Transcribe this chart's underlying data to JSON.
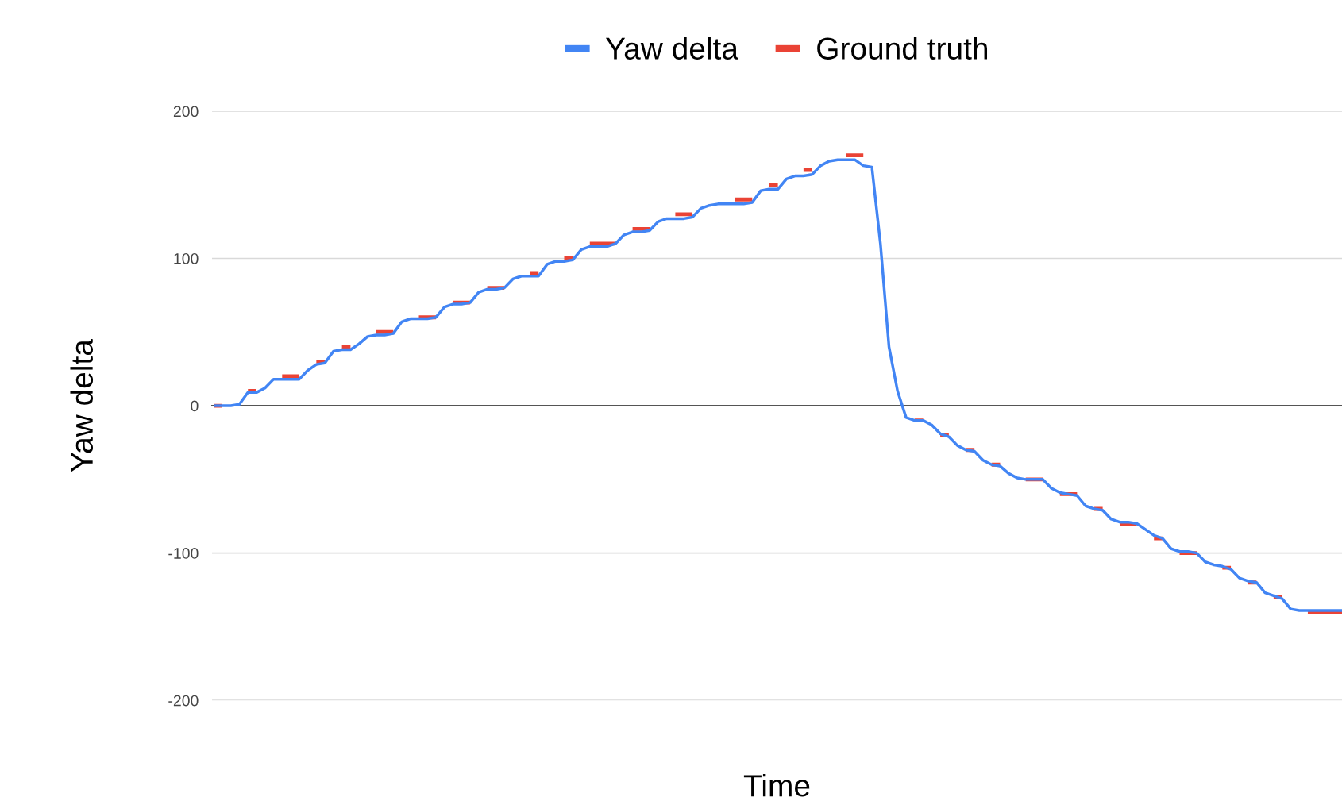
{
  "chart_data": {
    "type": "line",
    "xlabel": "Time",
    "ylabel": "Yaw delta",
    "categories": [
      null,
      null,
      null,
      null,
      null,
      null,
      null,
      null,
      null,
      null,
      null,
      null,
      null,
      null,
      null,
      null,
      null,
      null,
      null,
      null,
      null,
      null,
      null,
      null,
      null,
      null,
      null,
      null,
      null,
      null,
      null,
      null,
      null,
      null,
      null,
      null,
      null,
      null,
      null,
      null,
      null,
      null,
      null,
      null,
      null,
      null,
      null,
      null,
      null,
      null,
      null,
      null,
      null,
      null,
      null,
      null,
      null,
      null,
      null,
      null,
      null,
      null,
      null,
      null,
      null,
      null,
      null,
      null,
      null,
      null,
      null,
      null,
      null,
      null,
      null,
      null,
      null,
      null,
      null,
      null,
      null,
      null,
      null,
      null,
      null,
      null,
      null,
      null,
      null,
      null,
      null,
      null,
      null,
      null,
      null,
      null,
      null,
      null,
      null,
      null,
      null,
      null,
      null,
      null,
      null,
      null,
      null,
      null,
      null,
      null,
      null,
      null,
      null,
      null,
      null,
      null,
      null,
      null,
      null,
      null,
      null,
      null,
      null,
      null,
      null,
      null,
      null,
      null,
      null,
      null,
      null,
      null,
      null
    ],
    "series": [
      {
        "name": "Yaw delta",
        "color": "#4285f4",
        "values": [
          0,
          0,
          0,
          1,
          9,
          9,
          12,
          18,
          18,
          18,
          18,
          24,
          28,
          29,
          37,
          38,
          38,
          42,
          47,
          48,
          48,
          49,
          57,
          59,
          59,
          59,
          60,
          67,
          69,
          69,
          70,
          77,
          79,
          79,
          80,
          86,
          88,
          88,
          88,
          96,
          98,
          98,
          99,
          106,
          108,
          108,
          108,
          110,
          116,
          118,
          118,
          119,
          125,
          127,
          127,
          127,
          128,
          134,
          136,
          137,
          137,
          137,
          137,
          138,
          146,
          147,
          147,
          154,
          156,
          156,
          157,
          163,
          166,
          167,
          167,
          167,
          163,
          162,
          110,
          40,
          10,
          -8,
          -10,
          -10,
          -13,
          -19,
          -21,
          -27,
          -30,
          -31,
          -37,
          -40,
          -41,
          -46,
          -49,
          -50,
          -50,
          -50,
          -56,
          -59,
          -60,
          -61,
          -68,
          -70,
          -71,
          -77,
          -79,
          -79,
          -80,
          -84,
          -88,
          -90,
          -97,
          -99,
          -99,
          -100,
          -106,
          -108,
          -109,
          -111,
          -117,
          -119,
          -120,
          -127,
          -129,
          -131,
          -138,
          -139,
          -139,
          -139,
          -139,
          -139,
          -139
        ]
      },
      {
        "name": "Ground truth",
        "color": "#ea4335",
        "values": [
          0,
          0,
          null,
          null,
          10,
          10,
          null,
          null,
          20,
          20,
          20,
          null,
          30,
          30,
          null,
          40,
          40,
          null,
          null,
          50,
          50,
          50,
          null,
          null,
          60,
          60,
          60,
          null,
          70,
          70,
          70,
          null,
          80,
          80,
          80,
          null,
          null,
          90,
          90,
          null,
          null,
          100,
          100,
          null,
          110,
          110,
          110,
          110,
          null,
          120,
          120,
          120,
          null,
          null,
          130,
          130,
          130,
          null,
          null,
          null,
          null,
          140,
          140,
          140,
          null,
          150,
          150,
          null,
          null,
          160,
          160,
          null,
          null,
          null,
          170,
          170,
          170,
          null,
          null,
          null,
          null,
          null,
          -10,
          -10,
          null,
          -20,
          -20,
          null,
          -30,
          -30,
          null,
          -40,
          -40,
          null,
          null,
          -50,
          -50,
          -50,
          null,
          -60,
          -60,
          -60,
          null,
          -70,
          -70,
          null,
          -80,
          -80,
          -80,
          null,
          -90,
          -90,
          null,
          -100,
          -100,
          -100,
          null,
          null,
          -110,
          -110,
          null,
          -120,
          -120,
          null,
          -130,
          -130,
          null,
          null,
          -140,
          -140,
          -140,
          -140,
          -140
        ]
      }
    ],
    "ylim": [
      -200,
      200
    ],
    "yticks": [
      -200,
      -100,
      0,
      100,
      200
    ],
    "grid": "y",
    "legend": "top",
    "marker": "none",
    "line_style": "solid"
  }
}
